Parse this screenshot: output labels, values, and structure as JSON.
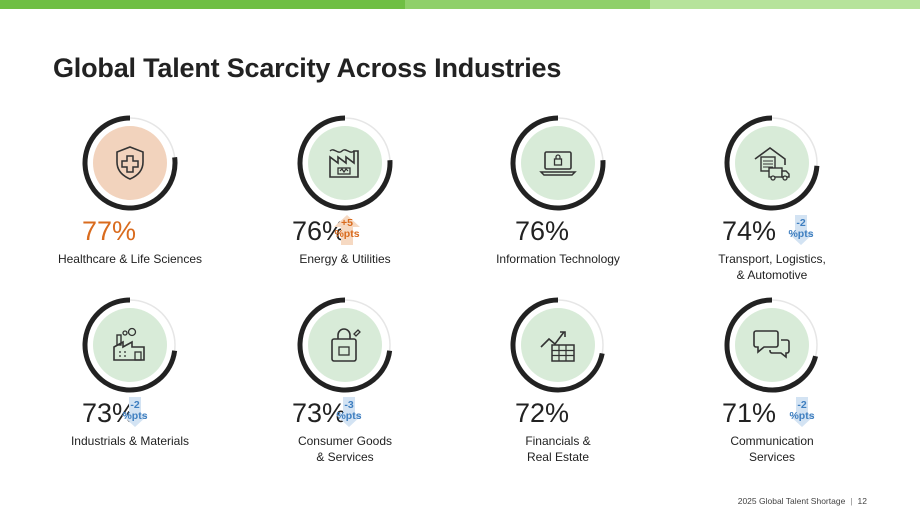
{
  "colors": {
    "band_dark": "#6fbf44",
    "band_light": "#b6e39b",
    "ring_dark": "#222222",
    "ring_light": "#e6e6e6",
    "fill_green": "#d8ebd8",
    "fill_peach": "#f2d3bd",
    "accent_orange": "#d96b1e",
    "accent_blue": "#3f7fc0"
  },
  "title": "Global Talent Scarcity Across Industries",
  "cards": [
    {
      "pct": "77%",
      "value": 77,
      "label": "Healthcare & Life Sciences",
      "highlight": true,
      "delta": "",
      "delta_dir": "",
      "icon": "shield-cross-icon"
    },
    {
      "pct": "76%",
      "value": 76,
      "label": "Energy & Utilities",
      "highlight": false,
      "delta": "+5\n%pts",
      "delta_dir": "up",
      "icon": "power-plant-icon"
    },
    {
      "pct": "76%",
      "value": 76,
      "label": "Information Technology",
      "highlight": false,
      "delta": "",
      "delta_dir": "",
      "icon": "laptop-lock-icon"
    },
    {
      "pct": "74%",
      "value": 74,
      "label": "Transport, Logistics,\n& Automotive",
      "highlight": false,
      "delta": "-2\n%pts",
      "delta_dir": "down",
      "icon": "warehouse-truck-icon"
    },
    {
      "pct": "73%",
      "value": 73,
      "label": "Industrials & Materials",
      "highlight": false,
      "delta": "-2\n%pts",
      "delta_dir": "down",
      "icon": "factory-icon"
    },
    {
      "pct": "73%",
      "value": 73,
      "label": "Consumer Goods\n& Services",
      "highlight": false,
      "delta": "-3\n%pts",
      "delta_dir": "down",
      "icon": "shopping-bag-icon"
    },
    {
      "pct": "72%",
      "value": 72,
      "label": "Financials &\nReal Estate",
      "highlight": false,
      "delta": "",
      "delta_dir": "",
      "icon": "finance-chart-icon"
    },
    {
      "pct": "71%",
      "value": 71,
      "label": "Communication\nServices",
      "highlight": false,
      "delta": "-2\n%pts",
      "delta_dir": "down",
      "icon": "chat-bubbles-icon"
    }
  ],
  "footer": {
    "text": "2025 Global Talent Shortage",
    "page": "12"
  }
}
